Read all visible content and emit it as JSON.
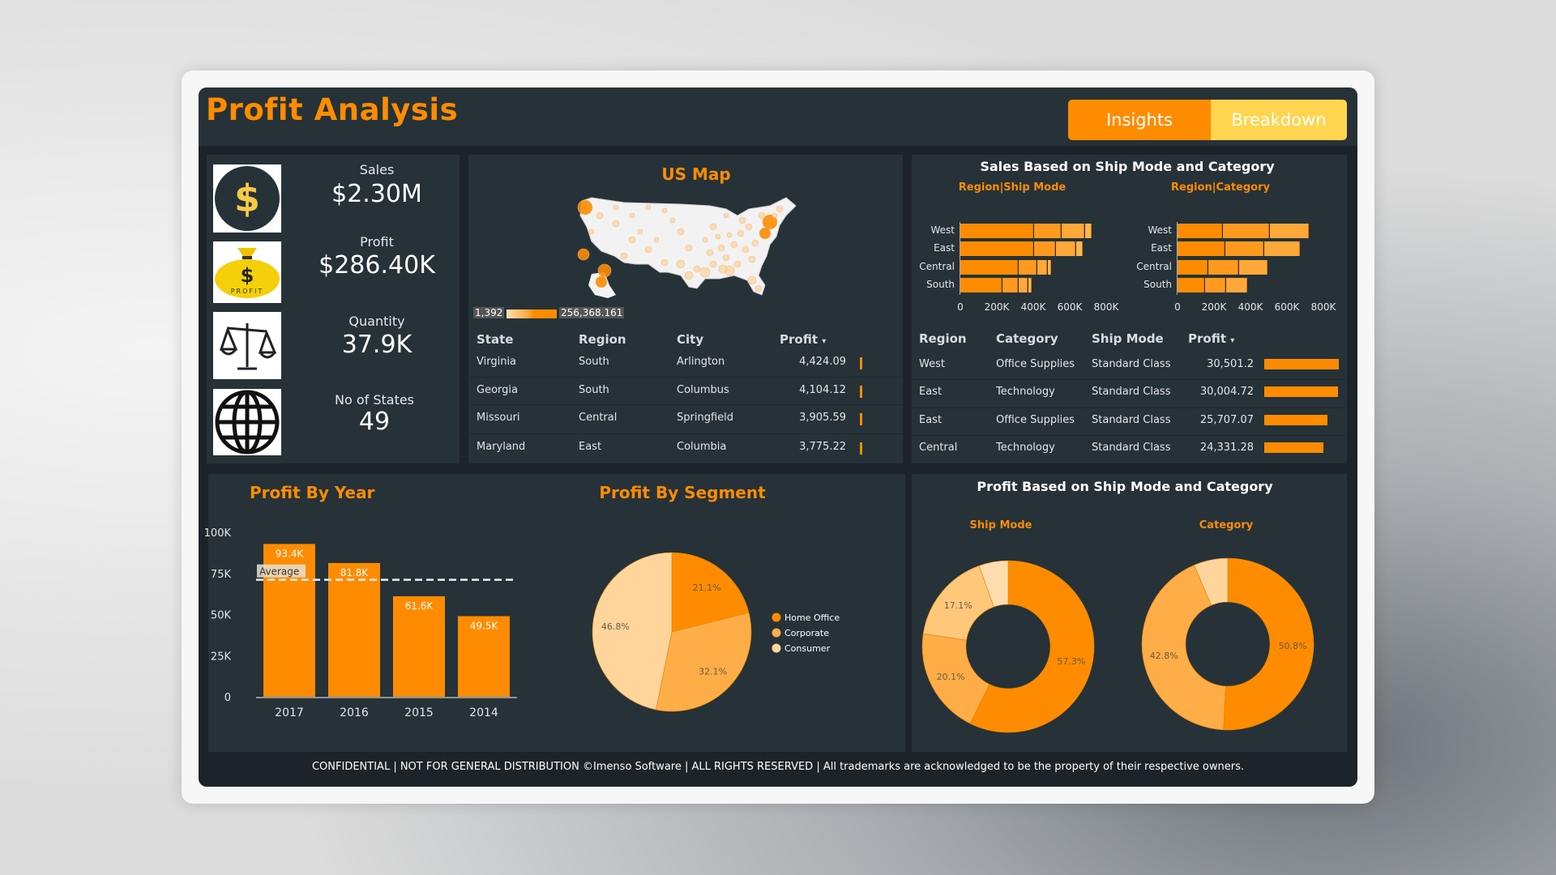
{
  "header": {
    "title": "Profit Analysis",
    "tabs": [
      {
        "label": "Insights",
        "active": true
      },
      {
        "label": "Breakdown",
        "active": false
      }
    ]
  },
  "colors": {
    "accent": "#ff8c00",
    "mid": "#ffad47",
    "light": "#ffd59c",
    "tab_inactive": "#ffd54f",
    "panel": "#263238"
  },
  "kpis": [
    {
      "label": "Sales",
      "value": "$2.30M",
      "icon": "dollar-coin-icon"
    },
    {
      "label": "Profit",
      "value": "$286.40K",
      "icon": "money-bag-icon"
    },
    {
      "label": "Quantity",
      "value": "37.9K",
      "icon": "scale-icon"
    },
    {
      "label": "No of States",
      "value": "49",
      "icon": "globe-icon"
    }
  ],
  "map": {
    "title": "US Map",
    "legend_min": "1,392",
    "legend_max": "256,368.161",
    "table": {
      "headers": [
        "State",
        "Region",
        "City",
        "Profit"
      ],
      "sort_indicator": "▾",
      "rows": [
        {
          "state": "Virginia",
          "region": "South",
          "city": "Arlington",
          "profit": "4,424.09"
        },
        {
          "state": "Georgia",
          "region": "South",
          "city": "Columbus",
          "profit": "4,104.12"
        },
        {
          "state": "Missouri",
          "region": "Central",
          "city": "Springfield",
          "profit": "3,905.59"
        },
        {
          "state": "Maryland",
          "region": "East",
          "city": "Columbia",
          "profit": "3,775.22"
        }
      ]
    }
  },
  "sales_panel": {
    "title": "Sales  Based on Ship Mode and Category",
    "table": {
      "headers": [
        "Region",
        "Category",
        "Ship Mode",
        "Profit"
      ],
      "sort_indicator": "▾",
      "rows": [
        {
          "region": "West",
          "category": "Office Supplies",
          "ship_mode": "Standard Class",
          "profit": "30,501.2",
          "value": 30501.2
        },
        {
          "region": "East",
          "category": "Technology",
          "ship_mode": "Standard Class",
          "profit": "30,004.72",
          "value": 30004.72
        },
        {
          "region": "East",
          "category": "Office Supplies",
          "ship_mode": "Standard Class",
          "profit": "25,707.07",
          "value": 25707.07
        },
        {
          "region": "Central",
          "category": "Technology",
          "ship_mode": "Standard Class",
          "profit": "24,331.28",
          "value": 24331.28
        }
      ]
    }
  },
  "profit_panel": {
    "title": "Profit Based on Ship Mode and Category"
  },
  "chart_data": [
    {
      "type": "bar",
      "orientation": "horizontal",
      "stacked": true,
      "title": "Region|Ship Mode",
      "categories": [
        "West",
        "East",
        "Central",
        "South"
      ],
      "series": [
        {
          "values": [
            403,
            403,
            320,
            230
          ]
        },
        {
          "values": [
            152,
            120,
            102,
            90
          ]
        },
        {
          "values": [
            128,
            112,
            58,
            54
          ]
        },
        {
          "values": [
            42,
            42,
            21,
            21
          ]
        }
      ],
      "unit": "K",
      "xticks": [
        "0",
        "200K",
        "400K",
        "600K",
        "800K"
      ],
      "xlim": [
        0,
        800
      ]
    },
    {
      "type": "bar",
      "orientation": "horizontal",
      "stacked": true,
      "title": "Region|Category",
      "categories": [
        "West",
        "East",
        "Central",
        "South"
      ],
      "series": [
        {
          "values": [
            248,
            264,
            171,
            150
          ]
        },
        {
          "values": [
            259,
            211,
            165,
            115
          ]
        },
        {
          "values": [
            216,
            200,
            163,
            122
          ]
        }
      ],
      "unit": "K",
      "xticks": [
        "0",
        "200K",
        "400K",
        "600K",
        "800K"
      ],
      "xlim": [
        0,
        800
      ]
    },
    {
      "type": "bar",
      "title": "Profit By Year",
      "categories": [
        "2017",
        "2016",
        "2015",
        "2014"
      ],
      "values": [
        93.4,
        81.8,
        61.6,
        49.5
      ],
      "labels": [
        "93.4K",
        "81.8K",
        "61.6K",
        "49.5K"
      ],
      "unit": "K",
      "yticks": [
        "0",
        "25K",
        "50K",
        "75K",
        "100K"
      ],
      "ylim": [
        0,
        100
      ],
      "reference_line": {
        "label": "Average",
        "value": 71.6
      }
    },
    {
      "type": "pie",
      "title": "Profit By Segment",
      "slices": [
        {
          "name": "Home Office",
          "value": 21.1,
          "label": "21.1%",
          "color": "#ff8c00"
        },
        {
          "name": "Corporate",
          "value": 32.1,
          "label": "32.1%",
          "color": "#ffad47"
        },
        {
          "name": "Consumer",
          "value": 46.8,
          "label": "46.8%",
          "color": "#ffd59c"
        }
      ],
      "legend": "right"
    },
    {
      "type": "pie",
      "donut": true,
      "title": "Ship Mode",
      "slices": [
        {
          "value": 57.3,
          "label": "57.3%",
          "color": "#ff8c00"
        },
        {
          "value": 20.1,
          "label": "20.1%",
          "color": "#ffad47"
        },
        {
          "value": 17.1,
          "label": "17.1%",
          "color": "#ffc77a"
        },
        {
          "value": 5.5,
          "label": "",
          "color": "#ffdcae"
        }
      ]
    },
    {
      "type": "pie",
      "donut": true,
      "title": "Category",
      "slices": [
        {
          "value": 50.8,
          "label": "50.8%",
          "color": "#ff8c00"
        },
        {
          "value": 42.8,
          "label": "42.8%",
          "color": "#ffad47"
        },
        {
          "value": 6.4,
          "label": "",
          "color": "#ffd59c"
        }
      ]
    }
  ],
  "footer": "CONFIDENTIAL | NOT FOR GENERAL DISTRIBUTION ©Imenso Software | ALL RIGHTS RESERVED | All trademarks are acknowledged to be the property of their respective owners."
}
